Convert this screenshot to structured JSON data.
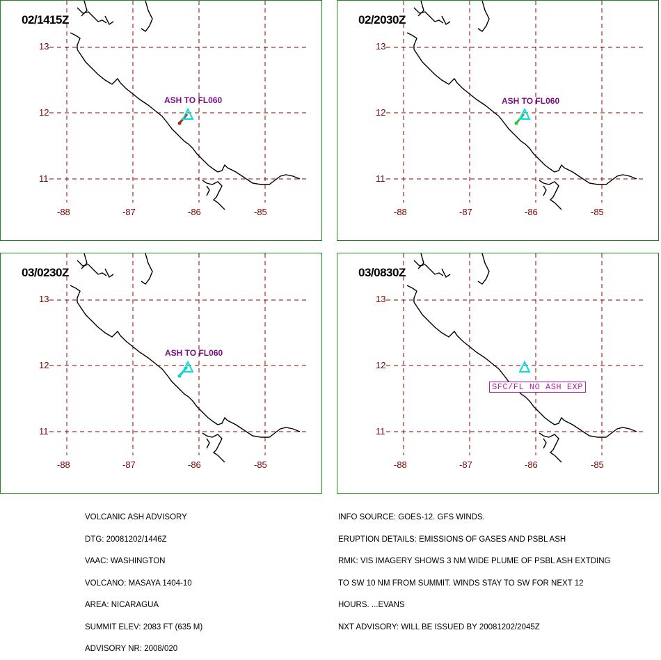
{
  "panels": [
    {
      "time": "02/1415Z",
      "label": "ASH TO FL060",
      "label_kind": "plain",
      "plume": "brown"
    },
    {
      "time": "02/2030Z",
      "label": "ASH TO FL060",
      "label_kind": "plain",
      "plume": "green"
    },
    {
      "time": "03/0230Z",
      "label": "ASH TO FL060",
      "label_kind": "plain",
      "plume": "cyan"
    },
    {
      "time": "03/0830Z",
      "label": "SFC/FL NO ASH EXP",
      "label_kind": "boxed",
      "plume": "none"
    }
  ],
  "grid": {
    "lat_labels": [
      "13",
      "12",
      "11"
    ],
    "lon_labels": [
      "-88",
      "-87",
      "-86",
      "-85"
    ]
  },
  "colors": {
    "panel_border": "#1a8a1a",
    "grid_line": "#8b0000",
    "coast": "#000000",
    "volcano_marker": "#00e0e0",
    "ash_label": "#7a1080",
    "boxed_label": "#b020a0"
  },
  "advisory_left": [
    "VOLCANIC ASH ADVISORY",
    "DTG: 20081202/1446Z",
    "VAAC: WASHINGTON",
    "VOLCANO: MASAYA 1404-10",
    "AREA: NICARAGUA",
    "SUMMIT ELEV: 2083 FT (635 M)",
    "ADVISORY NR: 2008/020"
  ],
  "advisory_right": [
    "INFO SOURCE: GOES-12. GFS WINDS.",
    "ERUPTION DETAILS: EMISSIONS OF GASES AND PSBL ASH",
    "RMK: VIS IMAGERY SHOWS 3 NM WIDE PLUME OF PSBL ASH EXTDING",
    "TO SW 10 NM FROM SUMMIT. WINDS STAY TO SW FOR NEXT 12",
    "HOURS. ...EVANS",
    "NXT ADVISORY: WILL BE ISSUED BY 20081202/2045Z"
  ]
}
